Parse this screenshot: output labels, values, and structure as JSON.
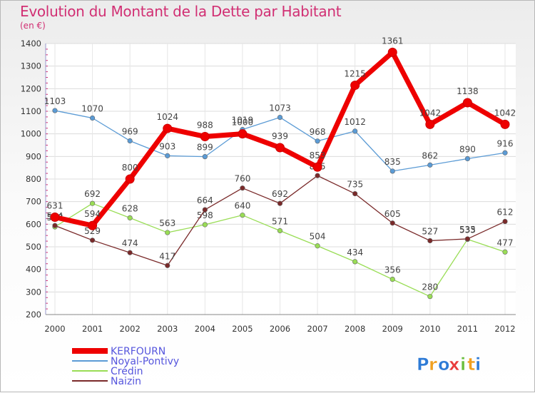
{
  "title": "Evolution du Montant de la Dette par Habitant",
  "subtitle": "(en €)",
  "logo": "Proxiti",
  "chart_data": {
    "type": "line",
    "x": [
      2000,
      2001,
      2002,
      2003,
      2004,
      2005,
      2006,
      2007,
      2008,
      2009,
      2010,
      2011,
      2012
    ],
    "ylim": [
      200,
      1400
    ],
    "yticks": [
      200,
      300,
      400,
      500,
      600,
      700,
      800,
      900,
      1000,
      1100,
      1200,
      1300,
      1400
    ],
    "grid": true,
    "legend_position": "bottom-left",
    "series": [
      {
        "name": "KERFOURN",
        "color": "#ee0000",
        "values": [
          631,
          594,
          800,
          1024,
          988,
          1000,
          939,
          853,
          1215,
          1361,
          1042,
          1138,
          1042
        ]
      },
      {
        "name": "Noyal-Pontivy",
        "color": "#5b9bd5",
        "values": [
          1103,
          1070,
          969,
          903,
          899,
          1019,
          1073,
          968,
          1012,
          835,
          862,
          890,
          916
        ]
      },
      {
        "name": "Crédin",
        "color": "#99dd55",
        "values": [
          588,
          692,
          628,
          563,
          598,
          640,
          571,
          504,
          434,
          356,
          280,
          533,
          477
        ]
      },
      {
        "name": "Naizin",
        "color": "#7a2a2a",
        "values": [
          594,
          529,
          474,
          417,
          664,
          760,
          692,
          815,
          735,
          605,
          527,
          535,
          612
        ]
      }
    ]
  }
}
